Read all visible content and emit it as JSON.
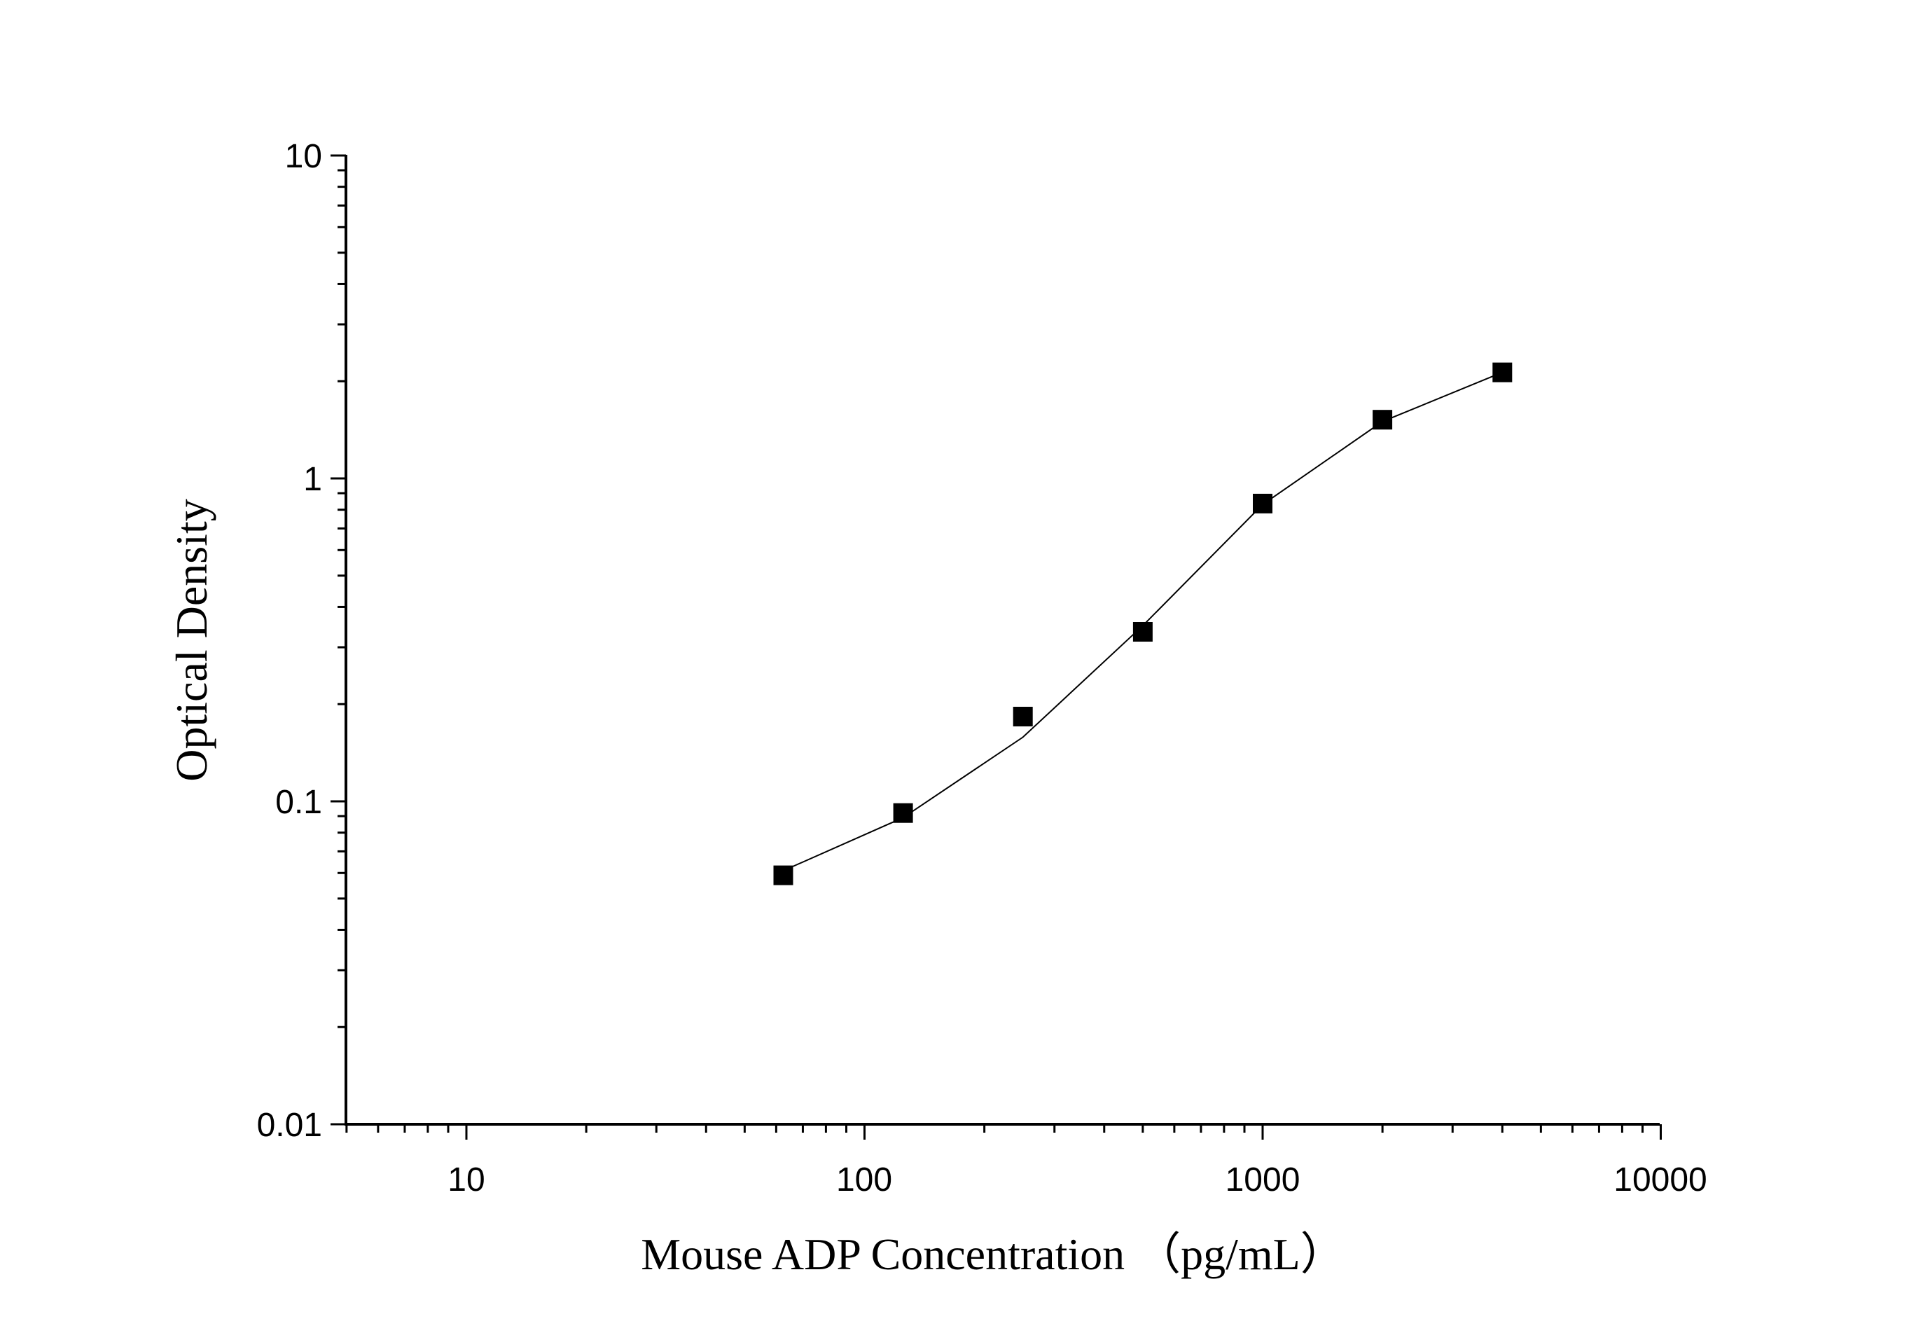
{
  "chart_data": {
    "type": "scatter",
    "title": "",
    "xlabel": "Mouse ADP Concentration （pg/mL）",
    "ylabel": "Optical Density",
    "xscale": "log",
    "yscale": "log",
    "xlim": [
      5,
      10000
    ],
    "ylim": [
      0.01,
      10
    ],
    "grid": false,
    "legend": "none",
    "marker": "filled-square",
    "colors": {
      "marker": "#000000",
      "line": "#000000",
      "axis": "#000000"
    },
    "x_ticks": [
      "10",
      "100",
      "1000",
      "10000"
    ],
    "y_ticks": [
      "0.01",
      "0.1",
      "1",
      "10"
    ],
    "series": [
      {
        "x": [
          62.5,
          125,
          250,
          500,
          1000,
          2000,
          4000
        ],
        "y": [
          0.059,
          0.092,
          0.183,
          0.335,
          0.836,
          1.52,
          2.13
        ]
      }
    ],
    "fit_curve": {
      "x": [
        62.5,
        125,
        250,
        500,
        1000,
        2000,
        4000
      ],
      "y": [
        0.061,
        0.089,
        0.158,
        0.35,
        0.83,
        1.5,
        2.13
      ]
    }
  }
}
